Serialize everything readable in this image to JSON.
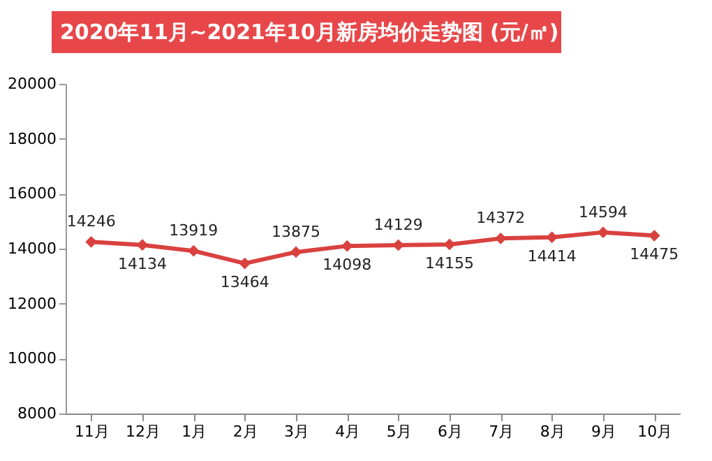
{
  "chart_data": {
    "type": "line",
    "title": "2020年11月~2021年10月新房均价走势图 (元/㎡)",
    "categories": [
      "11月",
      "12月",
      "1月",
      "2月",
      "3月",
      "4月",
      "5月",
      "6月",
      "7月",
      "8月",
      "9月",
      "10月"
    ],
    "series": [
      {
        "color": "#d9413f",
        "values": [
          14246,
          14134,
          13919,
          13464,
          13875,
          14098,
          14129,
          14155,
          14372,
          14414,
          14594,
          14475
        ]
      }
    ],
    "ylim": [
      8000,
      20000
    ],
    "yticks": [
      8000,
      10000,
      12000,
      14000,
      16000,
      18000,
      20000
    ],
    "grid": false,
    "legend": false,
    "marker": "diamond",
    "line_style": "solid",
    "data_labels": true
  }
}
